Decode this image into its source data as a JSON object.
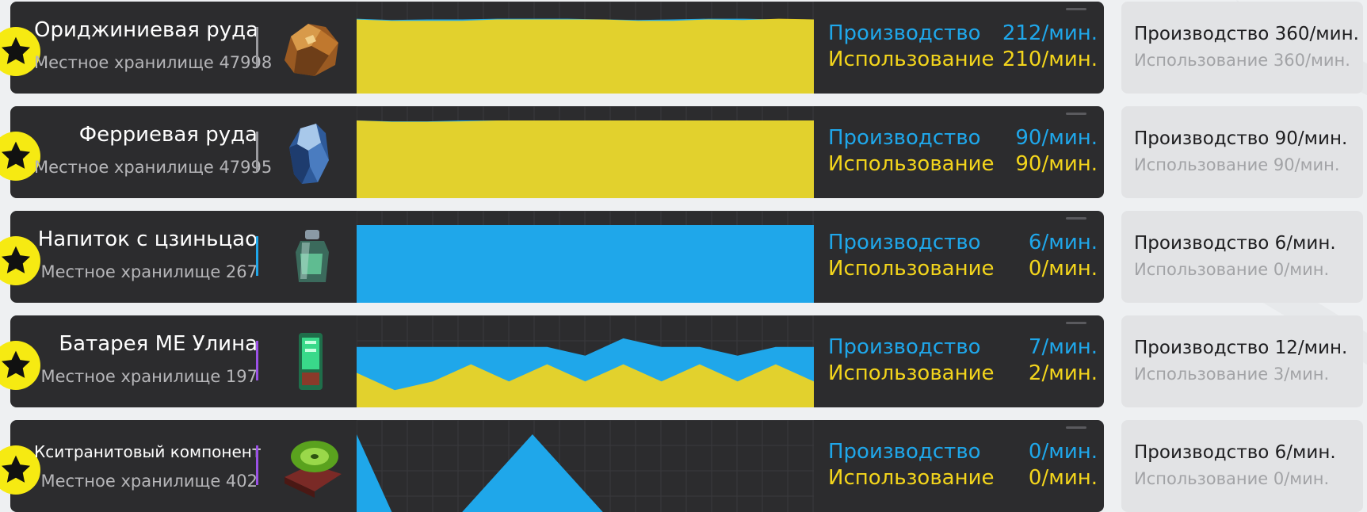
{
  "colors": {
    "production": "#1fa7ea",
    "usage": "#f3d51c",
    "card_bg": "#2c2c2e",
    "star": "#f6ea12"
  },
  "labels": {
    "production": "Производство",
    "usage": "Использование"
  },
  "rows": [
    {
      "name": "Ориджиниевая руда",
      "storage": "Местное хранилище 47998",
      "accent": "#9a9a9e",
      "icon": "originium-ore-icon",
      "production": "212/мин.",
      "usage": "210/мин.",
      "target_production": "Производство 360/мин.",
      "target_usage": "Использование 360/мин.",
      "chart": {
        "max": 220,
        "production": [
          212,
          208,
          210,
          210,
          212,
          212,
          212,
          210,
          208,
          210,
          212,
          212,
          210,
          210
        ],
        "usage": [
          210,
          206,
          206,
          206,
          210,
          210,
          210,
          210,
          206,
          206,
          210,
          208,
          212,
          210
        ]
      }
    },
    {
      "name": "Ферриевая руда",
      "storage": "Местное хранилище 47995",
      "accent": "#9a9a9e",
      "icon": "ferrium-ore-icon",
      "production": "90/мин.",
      "usage": "90/мин.",
      "target_production": "Производство 90/мин.",
      "target_usage": "Использование 90/мин.",
      "chart": {
        "max": 90,
        "production": [
          90,
          89,
          89,
          90,
          90,
          90,
          90,
          90,
          90,
          90,
          90,
          90,
          90,
          90
        ],
        "usage": [
          90,
          88.5,
          88.5,
          89,
          90,
          90,
          90,
          90,
          90,
          90,
          90,
          90,
          90,
          90
        ]
      }
    },
    {
      "name": "Напиток с цзиньцао",
      "storage": "Местное хранилище 267",
      "accent": "#1fa7ea",
      "icon": "jincao-drink-icon",
      "production": "6/мин.",
      "usage": "0/мин.",
      "target_production": "Производство 6/мин.",
      "target_usage": "Использование 0/мин.",
      "chart": {
        "max": 6,
        "production": [
          6,
          6,
          6,
          6,
          6,
          6,
          6,
          6,
          6,
          6,
          6,
          6,
          6,
          6
        ],
        "usage": [
          0,
          0,
          0,
          0,
          0,
          0,
          0,
          0,
          0,
          0,
          0,
          0,
          0,
          0
        ]
      }
    },
    {
      "name": "Батарея МЕ Улина",
      "storage": "Местное хранилище 197",
      "accent": "#9b52e6",
      "icon": "wuling-battery-icon",
      "production": "7/мин.",
      "usage": "2/мин.",
      "target_production": "Производство 12/мин.",
      "target_usage": "Использование 3/мин.",
      "chart": {
        "max": 9,
        "production": [
          7,
          7,
          7,
          7,
          7,
          7,
          6,
          8,
          7,
          7,
          6,
          7,
          7
        ],
        "usage": [
          4,
          2,
          3,
          5,
          3,
          5,
          3,
          5,
          3,
          5,
          3,
          5,
          3
        ]
      }
    },
    {
      "name": "Кситранитовый компонент",
      "storage": "Местное хранилище 402",
      "accent": "#9b52e6",
      "icon": "xiranite-component-icon",
      "production": "0/мин.",
      "usage": "0/мин.",
      "target_production": "Производство 6/мин.",
      "target_usage": "Использование 0/мин.",
      "chart": {
        "max": 6,
        "production": [
          6,
          0,
          0,
          0,
          3,
          6,
          3,
          0,
          0,
          0,
          0,
          0,
          0,
          0
        ],
        "usage": [
          0,
          0,
          0,
          0,
          0,
          0,
          0,
          0,
          0,
          0,
          0,
          0,
          0,
          0
        ]
      }
    }
  ]
}
